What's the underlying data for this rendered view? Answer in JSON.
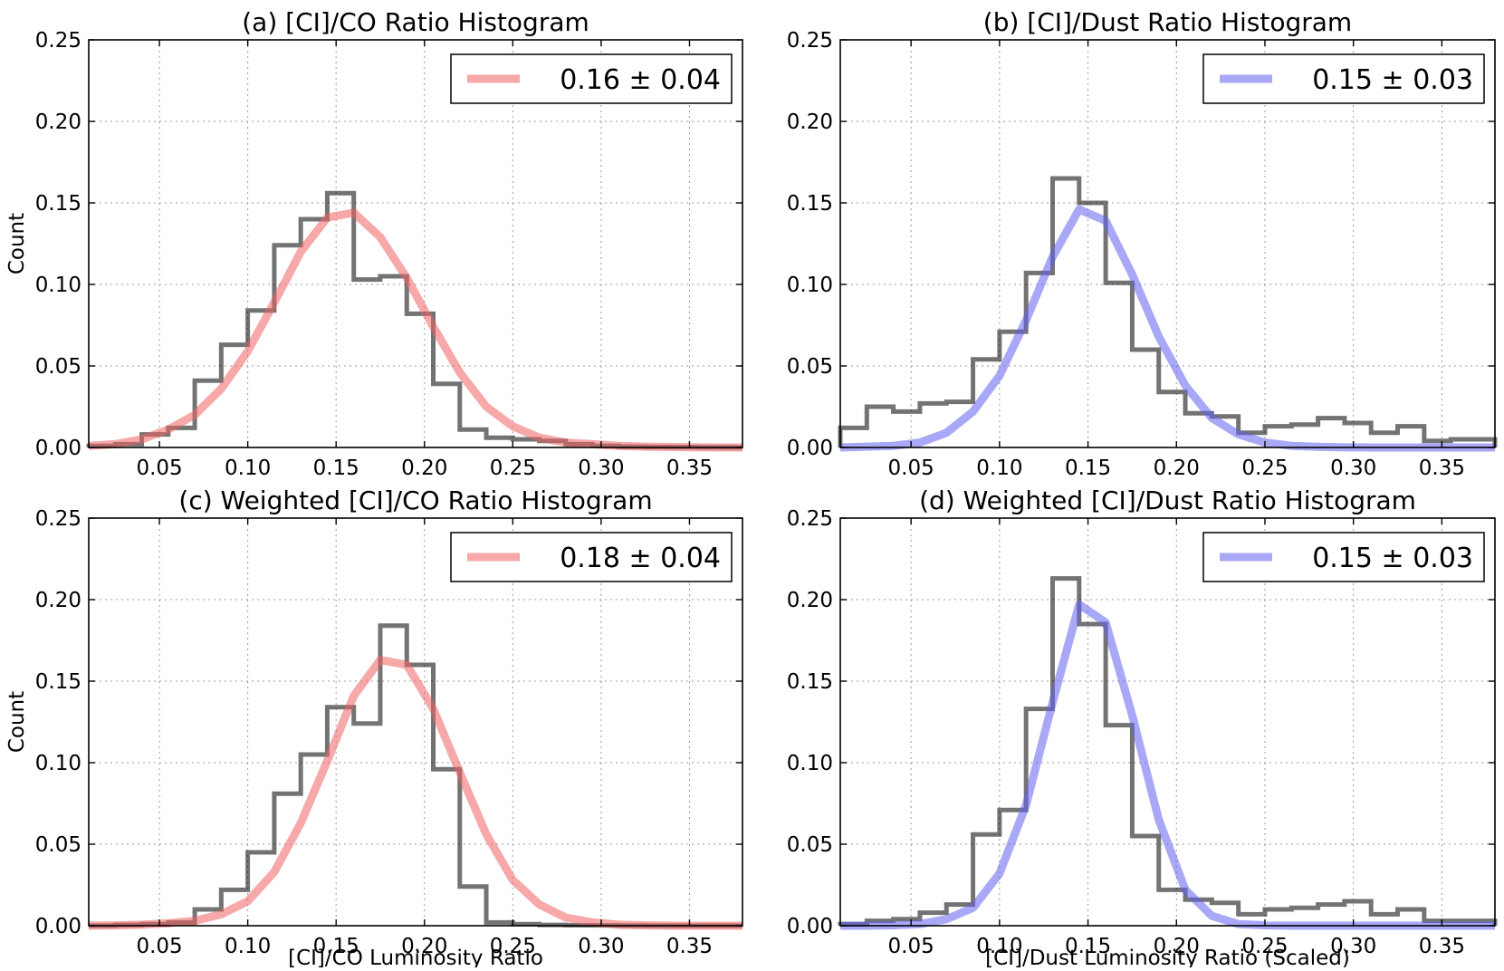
{
  "figure": {
    "description_hidden": ""
  },
  "chart_data": [
    {
      "id": "a",
      "type": "line",
      "title": "(a) [CI]/CO Ratio Histogram",
      "xlabel": "",
      "ylabel": "Count",
      "xlim": [
        0.01,
        0.38
      ],
      "ylim": [
        0.0,
        0.25
      ],
      "xticks": [
        "0.05",
        "0.10",
        "0.15",
        "0.20",
        "0.25",
        "0.30",
        "0.35"
      ],
      "yticks": [
        "0.00",
        "0.05",
        "0.10",
        "0.15",
        "0.20",
        "0.25"
      ],
      "grid": true,
      "legend": {
        "position": "top-right",
        "label": "0.16 ± 0.04",
        "color": "#f06060"
      },
      "histogram": {
        "name": "histogram",
        "bin_edges": [
          0.01,
          0.025,
          0.04,
          0.055,
          0.07,
          0.085,
          0.1,
          0.115,
          0.13,
          0.145,
          0.16,
          0.175,
          0.19,
          0.205,
          0.22,
          0.235,
          0.25,
          0.265,
          0.28,
          0.295,
          0.31,
          0.325,
          0.34,
          0.355,
          0.37,
          0.38
        ],
        "values": [
          0.001,
          0.002,
          0.008,
          0.012,
          0.041,
          0.063,
          0.084,
          0.124,
          0.14,
          0.156,
          0.103,
          0.105,
          0.082,
          0.039,
          0.011,
          0.006,
          0.005,
          0.004,
          0.002,
          0.001,
          0.0005,
          0.0003,
          0.0002,
          0.0001,
          0.0
        ]
      },
      "fit": {
        "name": "fit",
        "color": "#f06060",
        "x": [
          0.01,
          0.025,
          0.04,
          0.055,
          0.07,
          0.085,
          0.1,
          0.115,
          0.13,
          0.145,
          0.16,
          0.175,
          0.19,
          0.205,
          0.22,
          0.235,
          0.25,
          0.265,
          0.28,
          0.295,
          0.31,
          0.325,
          0.34,
          0.355,
          0.37,
          0.38
        ],
        "y": [
          0.001,
          0.002,
          0.005,
          0.011,
          0.02,
          0.036,
          0.059,
          0.089,
          0.12,
          0.141,
          0.144,
          0.129,
          0.104,
          0.074,
          0.046,
          0.025,
          0.013,
          0.006,
          0.003,
          0.002,
          0.001,
          0.0005,
          0.0003,
          0.0001,
          0.0,
          0.0
        ]
      }
    },
    {
      "id": "b",
      "type": "line",
      "title": "(b) [CI]/Dust Ratio Histogram",
      "xlabel": "",
      "ylabel": "",
      "xlim": [
        0.01,
        0.38
      ],
      "ylim": [
        0.0,
        0.25
      ],
      "xticks": [
        "0.05",
        "0.10",
        "0.15",
        "0.20",
        "0.25",
        "0.30",
        "0.35"
      ],
      "yticks": [
        "0.00",
        "0.05",
        "0.10",
        "0.15",
        "0.20",
        "0.25"
      ],
      "grid": true,
      "legend": {
        "position": "top-right",
        "label": "0.15 ± 0.03",
        "color": "#6060f0"
      },
      "histogram": {
        "name": "histogram",
        "bin_edges": [
          0.01,
          0.025,
          0.04,
          0.055,
          0.07,
          0.085,
          0.1,
          0.115,
          0.13,
          0.145,
          0.16,
          0.175,
          0.19,
          0.205,
          0.22,
          0.235,
          0.25,
          0.265,
          0.28,
          0.295,
          0.31,
          0.325,
          0.34,
          0.355,
          0.37,
          0.38
        ],
        "values": [
          0.012,
          0.025,
          0.022,
          0.027,
          0.028,
          0.054,
          0.071,
          0.107,
          0.165,
          0.15,
          0.101,
          0.06,
          0.034,
          0.021,
          0.019,
          0.009,
          0.013,
          0.014,
          0.018,
          0.015,
          0.009,
          0.013,
          0.004,
          0.005,
          0.005
        ]
      },
      "fit": {
        "name": "fit",
        "color": "#6060f0",
        "x": [
          0.01,
          0.025,
          0.04,
          0.055,
          0.07,
          0.085,
          0.1,
          0.115,
          0.13,
          0.145,
          0.16,
          0.175,
          0.19,
          0.205,
          0.22,
          0.235,
          0.25,
          0.265,
          0.28,
          0.295,
          0.31,
          0.325,
          0.34,
          0.355,
          0.37,
          0.38
        ],
        "y": [
          0.0,
          0.0005,
          0.001,
          0.003,
          0.009,
          0.022,
          0.044,
          0.078,
          0.117,
          0.146,
          0.139,
          0.106,
          0.068,
          0.038,
          0.018,
          0.008,
          0.003,
          0.001,
          0.0004,
          0.0001,
          0.0,
          0.0,
          0.0,
          0.0,
          0.0,
          0.0
        ]
      }
    },
    {
      "id": "c",
      "type": "line",
      "title": "(c) Weighted [CI]/CO Ratio Histogram",
      "xlabel": "[CI]/CO Luminosity Ratio",
      "ylabel": "Count",
      "xlim": [
        0.01,
        0.38
      ],
      "ylim": [
        0.0,
        0.25
      ],
      "xticks": [
        "0.05",
        "0.10",
        "0.15",
        "0.20",
        "0.25",
        "0.30",
        "0.35"
      ],
      "yticks": [
        "0.00",
        "0.05",
        "0.10",
        "0.15",
        "0.20",
        "0.25"
      ],
      "grid": true,
      "legend": {
        "position": "top-right",
        "label": "0.18 ± 0.04",
        "color": "#f06060"
      },
      "histogram": {
        "name": "histogram",
        "bin_edges": [
          0.01,
          0.025,
          0.04,
          0.055,
          0.07,
          0.085,
          0.1,
          0.115,
          0.13,
          0.145,
          0.16,
          0.175,
          0.19,
          0.205,
          0.22,
          0.235,
          0.25,
          0.265,
          0.28,
          0.295,
          0.31,
          0.325,
          0.34,
          0.355,
          0.37,
          0.38
        ],
        "values": [
          0.0,
          0.0005,
          0.001,
          0.002,
          0.01,
          0.022,
          0.045,
          0.081,
          0.105,
          0.134,
          0.124,
          0.184,
          0.16,
          0.096,
          0.024,
          0.002,
          0.001,
          0.0005,
          0.0003,
          0.0002,
          0.0001,
          0.0,
          0.0,
          0.0,
          0.0
        ]
      },
      "fit": {
        "name": "fit",
        "color": "#f06060",
        "x": [
          0.01,
          0.025,
          0.04,
          0.055,
          0.07,
          0.085,
          0.1,
          0.115,
          0.13,
          0.145,
          0.16,
          0.175,
          0.19,
          0.205,
          0.22,
          0.235,
          0.25,
          0.265,
          0.28,
          0.295,
          0.31,
          0.325,
          0.34,
          0.355,
          0.37,
          0.38
        ],
        "y": [
          0.0,
          0.0002,
          0.0006,
          0.0015,
          0.003,
          0.007,
          0.015,
          0.033,
          0.063,
          0.101,
          0.141,
          0.163,
          0.16,
          0.133,
          0.094,
          0.056,
          0.028,
          0.013,
          0.005,
          0.002,
          0.0006,
          0.0002,
          0.0,
          0.0,
          0.0,
          0.0
        ]
      }
    },
    {
      "id": "d",
      "type": "line",
      "title": "(d) Weighted [CI]/Dust Ratio Histogram",
      "xlabel": "[CI]/Dust Luminosity Ratio (Scaled)",
      "ylabel": "",
      "xlim": [
        0.01,
        0.38
      ],
      "ylim": [
        0.0,
        0.25
      ],
      "xticks": [
        "0.05",
        "0.10",
        "0.15",
        "0.20",
        "0.25",
        "0.30",
        "0.35"
      ],
      "yticks": [
        "0.00",
        "0.05",
        "0.10",
        "0.15",
        "0.20",
        "0.25"
      ],
      "grid": true,
      "legend": {
        "position": "top-right",
        "label": "0.15 ± 0.03",
        "color": "#6060f0"
      },
      "histogram": {
        "name": "histogram",
        "bin_edges": [
          0.01,
          0.025,
          0.04,
          0.055,
          0.07,
          0.085,
          0.1,
          0.115,
          0.13,
          0.145,
          0.16,
          0.175,
          0.19,
          0.205,
          0.22,
          0.235,
          0.25,
          0.265,
          0.28,
          0.295,
          0.31,
          0.325,
          0.34,
          0.355,
          0.37,
          0.38
        ],
        "values": [
          0.001,
          0.003,
          0.004,
          0.008,
          0.013,
          0.056,
          0.071,
          0.133,
          0.213,
          0.185,
          0.123,
          0.055,
          0.022,
          0.016,
          0.014,
          0.007,
          0.01,
          0.011,
          0.013,
          0.015,
          0.007,
          0.01,
          0.003,
          0.003,
          0.003
        ]
      },
      "fit": {
        "name": "fit",
        "color": "#6060f0",
        "x": [
          0.01,
          0.025,
          0.04,
          0.055,
          0.07,
          0.085,
          0.1,
          0.115,
          0.13,
          0.145,
          0.16,
          0.175,
          0.19,
          0.205,
          0.22,
          0.235,
          0.25,
          0.265,
          0.28,
          0.295,
          0.31,
          0.325,
          0.34,
          0.355,
          0.37,
          0.38
        ],
        "y": [
          0.0,
          0.0,
          0.0003,
          0.001,
          0.004,
          0.011,
          0.032,
          0.074,
          0.137,
          0.197,
          0.186,
          0.129,
          0.065,
          0.022,
          0.006,
          0.001,
          0.0003,
          0.0,
          0.0,
          0.0,
          0.0,
          0.0,
          0.0,
          0.0,
          0.0,
          0.0
        ]
      }
    }
  ]
}
